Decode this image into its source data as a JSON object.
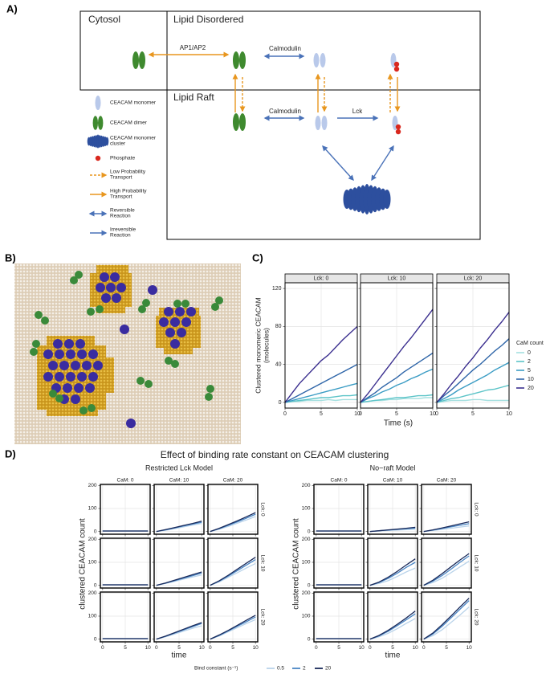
{
  "diagram": {
    "label": "A)",
    "regions": [
      "Cytosol",
      "Lipid Disordered",
      "Lipid Raft"
    ],
    "reactions": [
      "AP1/AP2",
      "Calmodulin",
      "Calmodulin",
      "Lck"
    ],
    "legend": [
      [
        "CEACAM monomer"
      ],
      [
        "CEACAM dimer"
      ],
      [
        "CEACAM monomer",
        "cluster"
      ],
      [
        "Phosphate"
      ],
      [
        "Low Probability",
        "Transport"
      ],
      [
        "High Probability",
        "Transport"
      ],
      [
        "Reversible",
        "Reaction"
      ],
      [
        "Irreversible",
        "Reaction"
      ]
    ]
  },
  "lattice": {
    "label": "B)"
  },
  "chart_data": [
    {
      "type": "line",
      "label": "C)",
      "x": [
        0,
        1,
        2,
        3,
        4,
        5,
        6,
        7,
        8,
        9,
        10
      ],
      "xlim": [
        0,
        10
      ],
      "xticks": [
        0,
        5,
        10
      ],
      "ylim": [
        -6,
        126
      ],
      "yticks": [
        0,
        40,
        80,
        120
      ],
      "x_label": "Time (s)",
      "y_label": [
        "Clustered monomeric CEACAM",
        "(molecules)"
      ],
      "legend_title": "CaM count",
      "series": [
        {
          "name": "0",
          "color": "#a4dfdf"
        },
        {
          "name": "2",
          "color": "#5cc4c8"
        },
        {
          "name": "5",
          "color": "#3a9cc4"
        },
        {
          "name": "10",
          "color": "#2e65a8"
        },
        {
          "name": "20",
          "color": "#3b2f8f"
        }
      ],
      "facets": [
        {
          "title": "Lck: 0",
          "values": [
            [
              0,
              1,
              1,
              2,
              2,
              2,
              3,
              2,
              3,
              3,
              3
            ],
            [
              0,
              1,
              2,
              3,
              4,
              5,
              5,
              6,
              7,
              7,
              8
            ],
            [
              0,
              2,
              4,
              6,
              8,
              10,
              12,
              14,
              16,
              18,
              20
            ],
            [
              0,
              4,
              8,
              12,
              16,
              20,
              24,
              28,
              32,
              36,
              40
            ],
            [
              0,
              10,
              20,
              28,
              36,
              44,
              50,
              58,
              66,
              73,
              80
            ]
          ]
        },
        {
          "title": "Lck: 10",
          "values": [
            [
              0,
              1,
              2,
              2,
              3,
              3,
              4,
              4,
              4,
              5,
              5
            ],
            [
              0,
              1,
              2,
              3,
              4,
              5,
              5,
              6,
              7,
              7,
              8
            ],
            [
              0,
              4,
              7,
              11,
              14,
              18,
              21,
              25,
              28,
              32,
              35
            ],
            [
              0,
              5,
              10,
              16,
              21,
              26,
              32,
              37,
              42,
              47,
              52
            ],
            [
              0,
              9,
              19,
              29,
              39,
              49,
              59,
              68,
              78,
              88,
              98
            ]
          ]
        },
        {
          "title": "Lck: 20",
          "values": [
            [
              0,
              1,
              2,
              2,
              2,
              3,
              3,
              2,
              2,
              2,
              2
            ],
            [
              0,
              2,
              4,
              5,
              7,
              9,
              11,
              13,
              14,
              16,
              18
            ],
            [
              0,
              4,
              8,
              13,
              17,
              21,
              25,
              29,
              34,
              38,
              42
            ],
            [
              0,
              7,
              13,
              20,
              27,
              34,
              40,
              47,
              54,
              60,
              67
            ],
            [
              0,
              9,
              19,
              28,
              38,
              47,
              57,
              66,
              76,
              85,
              95
            ]
          ]
        }
      ]
    },
    {
      "type": "line",
      "label": "D)",
      "title": "Effect of binding rate constant on CEACAM clustering",
      "x": [
        0,
        2,
        4,
        6,
        8,
        10
      ],
      "xlim": [
        -0.5,
        10.5
      ],
      "xticks": [
        0,
        5,
        10
      ],
      "ylim": [
        -12,
        205
      ],
      "yticks": [
        0,
        100,
        200
      ],
      "x_label": "time",
      "y_label": "clustered CEACAM count",
      "col_labels": [
        "CaM: 0",
        "CaM: 10",
        "CaM: 20"
      ],
      "row_labels": [
        "Lck: 0",
        "Lck: 10",
        "Lck: 20"
      ],
      "legend_title": "Bind constant (s⁻¹)",
      "series": [
        {
          "name": "0.5",
          "color": "#b9d3ea"
        },
        {
          "name": "2",
          "color": "#4a86c5"
        },
        {
          "name": "20",
          "color": "#1a2a5a"
        }
      ],
      "models": [
        {
          "title": "Restricted Lck Model",
          "panels": [
            [
              [
                2,
                2,
                2,
                2,
                2,
                2
              ],
              [
                2,
                2,
                2,
                2,
                2,
                2
              ],
              [
                2,
                2,
                2,
                2,
                2,
                2
              ]
            ],
            [
              [
                0,
                5,
                12,
                20,
                28,
                35
              ],
              [
                0,
                7,
                15,
                24,
                32,
                40
              ],
              [
                0,
                8,
                17,
                26,
                35,
                45
              ]
            ],
            [
              [
                0,
                10,
                22,
                36,
                50,
                65
              ],
              [
                0,
                12,
                27,
                42,
                58,
                75
              ],
              [
                0,
                14,
                30,
                46,
                64,
                82
              ]
            ],
            [
              [
                2,
                2,
                2,
                2,
                2,
                2
              ],
              [
                2,
                2,
                2,
                2,
                2,
                2
              ],
              [
                2,
                2,
                2,
                2,
                2,
                2
              ]
            ],
            [
              [
                0,
                8,
                17,
                27,
                36,
                45
              ],
              [
                0,
                9,
                20,
                31,
                42,
                53
              ],
              [
                0,
                10,
                22,
                34,
                46,
                58
              ]
            ],
            [
              [
                0,
                15,
                35,
                55,
                75,
                95
              ],
              [
                0,
                18,
                40,
                64,
                88,
                112
              ],
              [
                0,
                20,
                44,
                70,
                96,
                122
              ]
            ],
            [
              [
                2,
                2,
                2,
                2,
                2,
                2
              ],
              [
                2,
                2,
                2,
                2,
                2,
                2
              ],
              [
                2,
                2,
                2,
                2,
                2,
                2
              ]
            ],
            [
              [
                0,
                10,
                22,
                35,
                47,
                58
              ],
              [
                0,
                12,
                26,
                40,
                54,
                68
              ],
              [
                0,
                13,
                28,
                43,
                58,
                72
              ]
            ],
            [
              [
                0,
                14,
                32,
                50,
                68,
                85
              ],
              [
                0,
                16,
                36,
                56,
                76,
                96
              ],
              [
                0,
                18,
                38,
                60,
                82,
                104
              ]
            ]
          ]
        },
        {
          "title": "No−raft Model",
          "panels": [
            [
              [
                2,
                2,
                2,
                2,
                2,
                2
              ],
              [
                2,
                2,
                2,
                2,
                2,
                2
              ],
              [
                2,
                2,
                2,
                2,
                2,
                2
              ]
            ],
            [
              [
                0,
                2,
                4,
                6,
                8,
                10
              ],
              [
                0,
                3,
                6,
                9,
                12,
                15
              ],
              [
                0,
                3,
                7,
                10,
                14,
                18
              ]
            ],
            [
              [
                0,
                4,
                9,
                14,
                19,
                24
              ],
              [
                0,
                6,
                13,
                20,
                27,
                34
              ],
              [
                0,
                7,
                15,
                24,
                33,
                42
              ]
            ],
            [
              [
                2,
                2,
                2,
                2,
                2,
                2
              ],
              [
                2,
                2,
                2,
                2,
                2,
                2
              ],
              [
                2,
                2,
                2,
                2,
                2,
                2
              ]
            ],
            [
              [
                0,
                8,
                20,
                38,
                58,
                75
              ],
              [
                0,
                12,
                30,
                52,
                78,
                100
              ],
              [
                0,
                14,
                35,
                60,
                88,
                115
              ]
            ],
            [
              [
                0,
                12,
                30,
                55,
                80,
                105
              ],
              [
                0,
                18,
                42,
                70,
                100,
                128
              ],
              [
                0,
                22,
                50,
                80,
                110,
                138
              ]
            ],
            [
              [
                2,
                2,
                2,
                2,
                2,
                2
              ],
              [
                2,
                2,
                2,
                2,
                2,
                2
              ],
              [
                2,
                2,
                2,
                2,
                2,
                2
              ]
            ],
            [
              [
                0,
                10,
                25,
                45,
                68,
                90
              ],
              [
                0,
                14,
                34,
                58,
                84,
                110
              ],
              [
                0,
                16,
                38,
                64,
                92,
                122
              ]
            ],
            [
              [
                0,
                15,
                40,
                72,
                105,
                140
              ],
              [
                0,
                22,
                55,
                92,
                130,
                168
              ],
              [
                0,
                26,
                62,
                100,
                140,
                178
              ]
            ]
          ]
        }
      ]
    }
  ]
}
